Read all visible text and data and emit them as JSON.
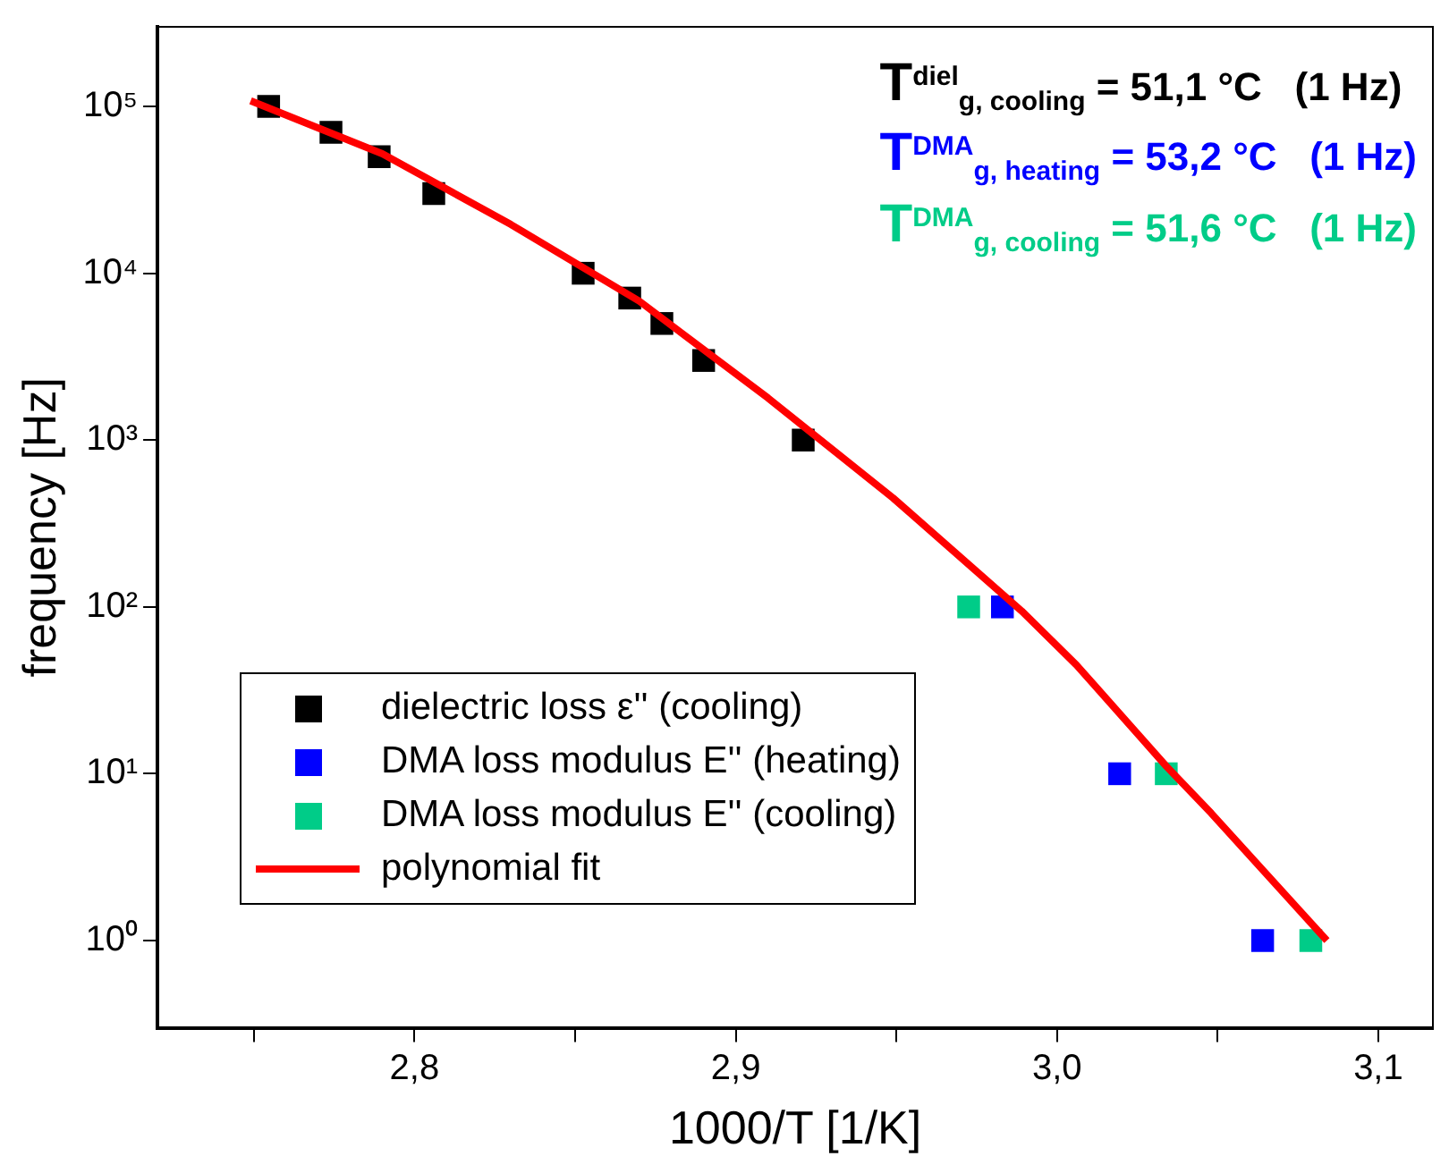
{
  "chart_data": {
    "type": "scatter",
    "xlabel": "1000/T [1/K]",
    "ylabel": "frequency [Hz]",
    "log": "y",
    "marker": "square",
    "legend": "bottom left",
    "grid": false,
    "xlim": [
      2.72,
      3.117
    ],
    "xticks": [
      {
        "value": 2.75,
        "label": null
      },
      {
        "value": 2.8,
        "label": "2,8"
      },
      {
        "value": 2.85,
        "label": null
      },
      {
        "value": 2.9,
        "label": "2,9"
      },
      {
        "value": 2.95,
        "label": null
      },
      {
        "value": 3.0,
        "label": "3,0"
      },
      {
        "value": 3.05,
        "label": null
      },
      {
        "value": 3.1,
        "label": "3,1"
      }
    ],
    "ylim": [
      0.31,
      300000
    ],
    "yticks": [
      {
        "value": 1,
        "label": "10⁰"
      },
      {
        "value": 10,
        "label": "10¹"
      },
      {
        "value": 100,
        "label": "10²"
      },
      {
        "value": 1000,
        "label": "10³"
      },
      {
        "value": 10000,
        "label": "10⁴"
      },
      {
        "value": 100000,
        "label": "10⁵"
      }
    ],
    "series": [
      {
        "name": "dielectric loss ε'' (cooling)",
        "color": "#000000",
        "x": [
          2.7546,
          2.774,
          2.789,
          2.806,
          2.8525,
          2.867,
          2.877,
          2.89,
          2.921
        ],
        "values": [
          100000,
          70000,
          50000,
          30000,
          10000,
          7100,
          5000,
          3000,
          1000
        ]
      },
      {
        "name": "DMA loss modulus E'' (heating)",
        "color": "#0000ff",
        "x": [
          2.983,
          3.0195,
          3.064
        ],
        "values": [
          100,
          10,
          1
        ]
      },
      {
        "name": "DMA loss modulus E'' (cooling)",
        "color": "#00cc88",
        "x": [
          2.9725,
          3.034,
          3.079
        ],
        "values": [
          100,
          10,
          1
        ]
      },
      {
        "name": "polynomial fit",
        "type": "line",
        "marker": "none",
        "color": "#ff0000",
        "x": [
          2.749,
          2.79,
          2.83,
          2.87,
          2.91,
          2.949,
          2.989,
          3.006,
          3.034,
          3.048,
          3.084
        ],
        "values": [
          108000,
          52000,
          19600,
          6800,
          1790,
          449,
          94.5,
          45,
          11.1,
          5.8,
          1.0
        ]
      }
    ],
    "annotations": [
      "T$^{diel}$$_{g, cooling}$ = 51,1 °C   (1 Hz)",
      "T$^{DMA}$$_{g, heating}$ = 53,2 °C   (1 Hz)",
      "T$^{DMA}$$_{g, cooling}$ = 51,6 °C   (1 Hz)"
    ]
  }
}
